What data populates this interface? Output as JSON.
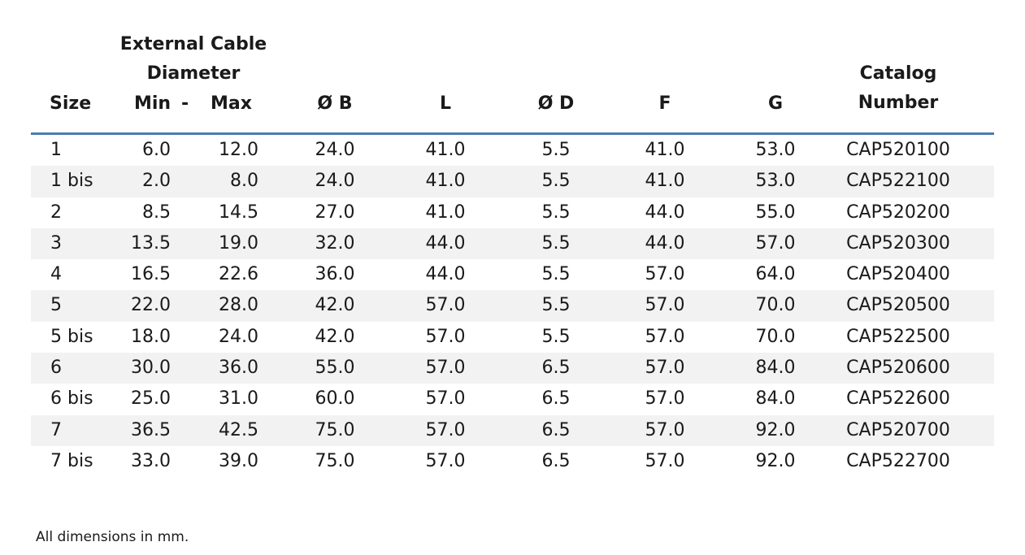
{
  "header": {
    "size": "Size",
    "ext_line1": "External Cable",
    "ext_line2": "Diameter",
    "min": "Min",
    "dash": "-",
    "max": "Max",
    "b": "Ø B",
    "l": "L",
    "d": "Ø D",
    "f": "F",
    "g": "G",
    "catalog_line1": "Catalog",
    "catalog_line2": "Number"
  },
  "rows": [
    {
      "size": "1",
      "min": "6.0",
      "max": "12.0",
      "b": "24.0",
      "l": "41.0",
      "d": "5.5",
      "f": "41.0",
      "g": "53.0",
      "catalog": "CAP520100"
    },
    {
      "size": "1 bis",
      "min": "2.0",
      "max": "8.0",
      "b": "24.0",
      "l": "41.0",
      "d": "5.5",
      "f": "41.0",
      "g": "53.0",
      "catalog": "CAP522100"
    },
    {
      "size": "2",
      "min": "8.5",
      "max": "14.5",
      "b": "27.0",
      "l": "41.0",
      "d": "5.5",
      "f": "44.0",
      "g": "55.0",
      "catalog": "CAP520200"
    },
    {
      "size": "3",
      "min": "13.5",
      "max": "19.0",
      "b": "32.0",
      "l": "44.0",
      "d": "5.5",
      "f": "44.0",
      "g": "57.0",
      "catalog": "CAP520300"
    },
    {
      "size": "4",
      "min": "16.5",
      "max": "22.6",
      "b": "36.0",
      "l": "44.0",
      "d": "5.5",
      "f": "57.0",
      "g": "64.0",
      "catalog": "CAP520400"
    },
    {
      "size": "5",
      "min": "22.0",
      "max": "28.0",
      "b": "42.0",
      "l": "57.0",
      "d": "5.5",
      "f": "57.0",
      "g": "70.0",
      "catalog": "CAP520500"
    },
    {
      "size": "5 bis",
      "min": "18.0",
      "max": "24.0",
      "b": "42.0",
      "l": "57.0",
      "d": "5.5",
      "f": "57.0",
      "g": "70.0",
      "catalog": "CAP522500"
    },
    {
      "size": "6",
      "min": "30.0",
      "max": "36.0",
      "b": "55.0",
      "l": "57.0",
      "d": "6.5",
      "f": "57.0",
      "g": "84.0",
      "catalog": "CAP520600"
    },
    {
      "size": "6 bis",
      "min": "25.0",
      "max": "31.0",
      "b": "60.0",
      "l": "57.0",
      "d": "6.5",
      "f": "57.0",
      "g": "84.0",
      "catalog": "CAP522600"
    },
    {
      "size": "7",
      "min": "36.5",
      "max": "42.5",
      "b": "75.0",
      "l": "57.0",
      "d": "6.5",
      "f": "57.0",
      "g": "92.0",
      "catalog": "CAP520700"
    },
    {
      "size": "7 bis",
      "min": "33.0",
      "max": "39.0",
      "b": "75.0",
      "l": "57.0",
      "d": "6.5",
      "f": "57.0",
      "g": "92.0",
      "catalog": "CAP522700"
    }
  ],
  "footnote": "All dimensions in mm.",
  "colors": {
    "rule": "#4a7bb3",
    "alt_row": "#f2f2f2"
  }
}
